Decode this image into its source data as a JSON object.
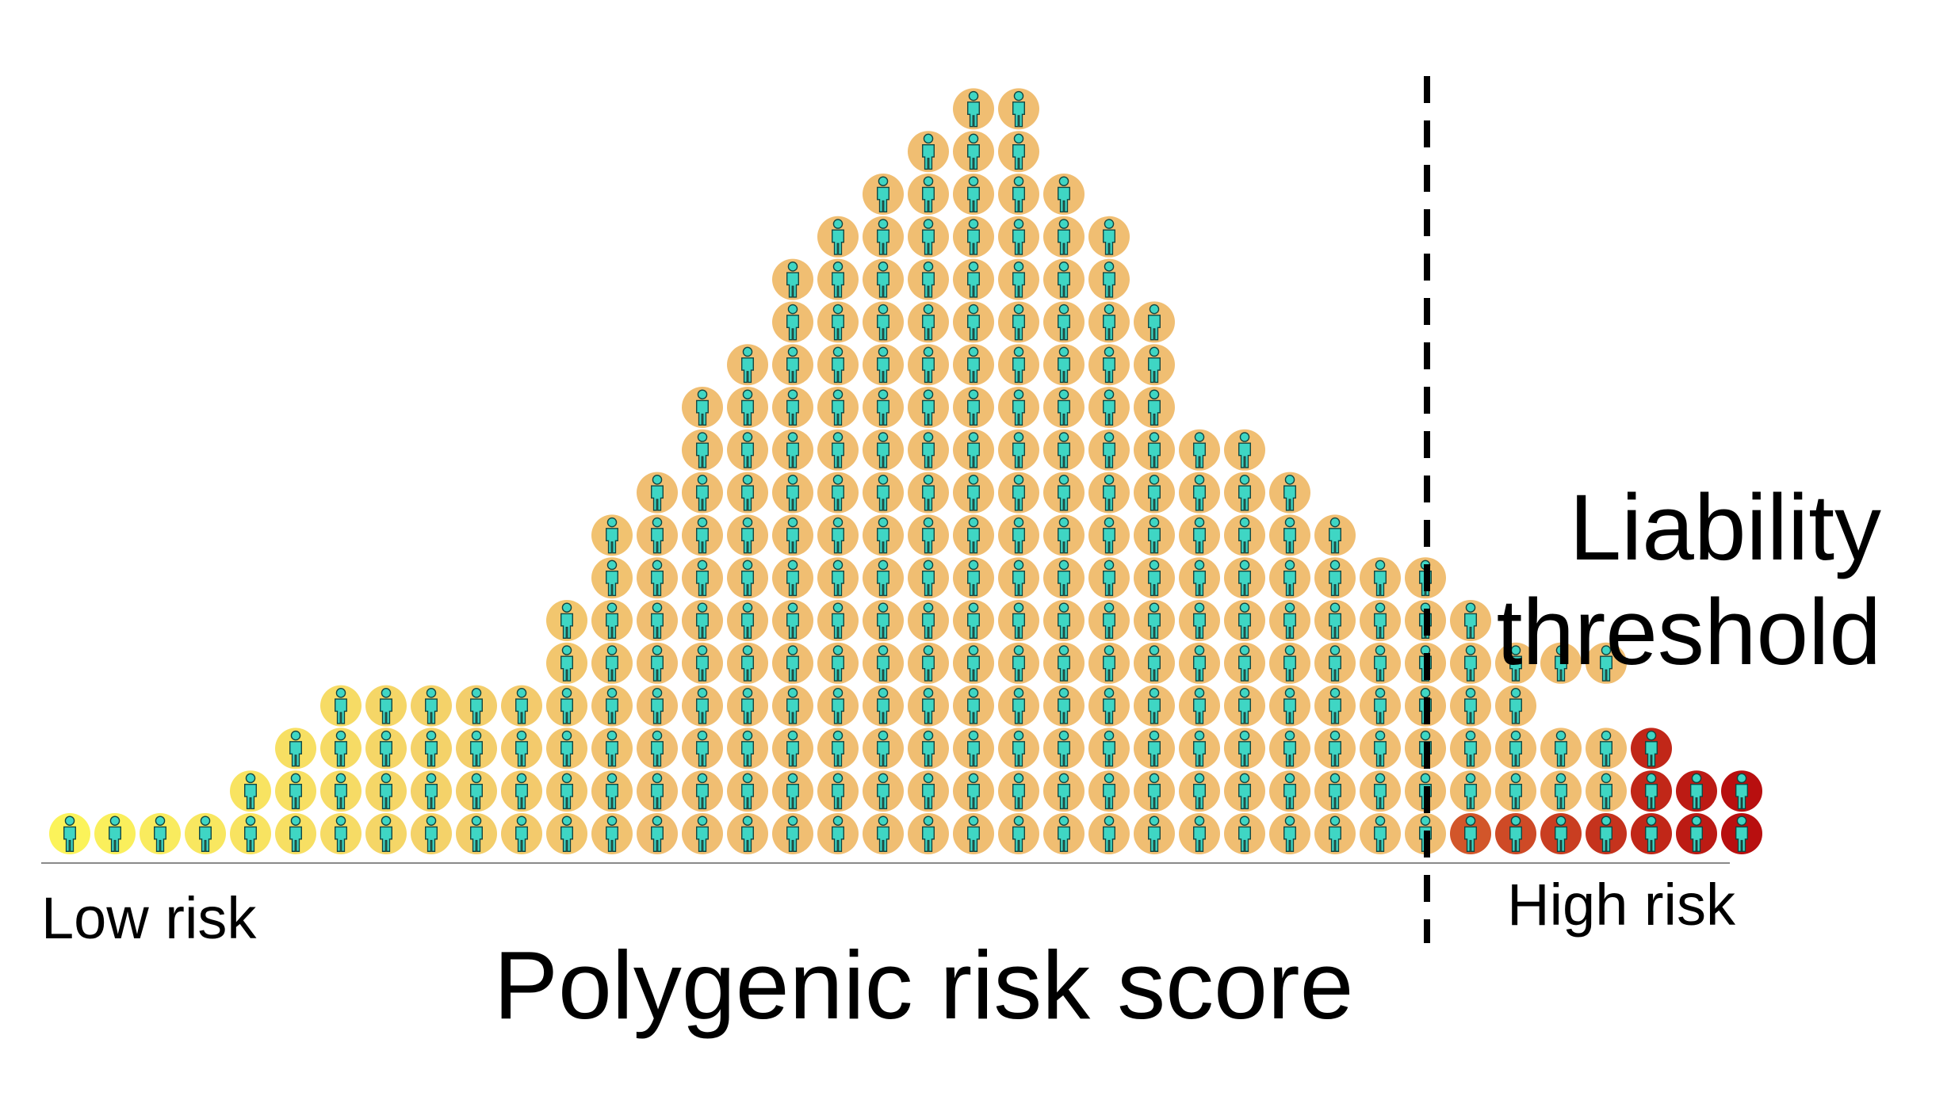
{
  "labels": {
    "low_end": "Low risk",
    "high_end": "High risk",
    "axis_title": "Polygenic risk score",
    "threshold_line1": "Liability",
    "threshold_line2": "threshold"
  },
  "population": {
    "row_counts": [
      38,
      34,
      31,
      27,
      24,
      21,
      19,
      17,
      15,
      13,
      11,
      10,
      9,
      8,
      7,
      5,
      3,
      2
    ],
    "row_offsets": [
      0,
      4,
      5,
      6,
      11,
      11,
      12,
      12,
      13,
      14,
      14,
      15,
      16,
      16,
      17,
      18,
      19,
      20
    ],
    "affected_per_row": [
      7,
      3,
      1
    ],
    "colors": {
      "low_end": "#fbf35a",
      "middle": "#f0be72",
      "affected_start": "#d2562a",
      "affected_end": "#b80f0f",
      "person": "#3fd6c4",
      "person_outline": "#11443f",
      "threshold_line": "#000000",
      "axis_line": "#8a8a8a"
    }
  }
}
